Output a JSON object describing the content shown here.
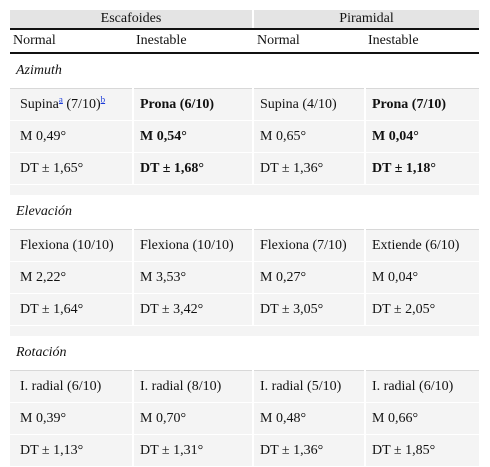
{
  "header": {
    "groups": [
      "Escafoides",
      "Piramidal"
    ],
    "columns": [
      "Normal",
      "Inestable",
      "Normal",
      "Inestable"
    ]
  },
  "sections": [
    {
      "title": "Azimuth",
      "rows": [
        [
          {
            "text": "Supina",
            "sup_a": "a",
            "mid": " (7/10)",
            "sup_b": "b",
            "bold": false
          },
          {
            "text": "Prona (6/10)",
            "bold": true
          },
          {
            "text": "Supina (4/10)",
            "bold": false
          },
          {
            "text": "Prona (7/10)",
            "bold": true
          }
        ],
        [
          {
            "text": "M 0,49°",
            "bold": false
          },
          {
            "text": "M 0,54°",
            "bold": true
          },
          {
            "text": "M 0,65°",
            "bold": false
          },
          {
            "text": "M 0,04°",
            "bold": true
          }
        ],
        [
          {
            "text": "DT ± 1,65°",
            "bold": false
          },
          {
            "text": "DT ± 1,68°",
            "bold": true
          },
          {
            "text": "DT ± 1,36°",
            "bold": false
          },
          {
            "text": "DT ± 1,18°",
            "bold": true
          }
        ]
      ]
    },
    {
      "title": "Elevación",
      "rows": [
        [
          {
            "text": "Flexiona (10/10)",
            "bold": false
          },
          {
            "text": "Flexiona (10/10)",
            "bold": false
          },
          {
            "text": "Flexiona (7/10)",
            "bold": false
          },
          {
            "text": "Extiende (6/10)",
            "bold": false
          }
        ],
        [
          {
            "text": "M 2,22°",
            "bold": false
          },
          {
            "text": "M 3,53°",
            "bold": false
          },
          {
            "text": "M 0,27°",
            "bold": false
          },
          {
            "text": "M 0,04°",
            "bold": false
          }
        ],
        [
          {
            "text": "DT ± 1,64°",
            "bold": false
          },
          {
            "text": "DT ± 3,42°",
            "bold": false
          },
          {
            "text": "DT ± 3,05°",
            "bold": false
          },
          {
            "text": "DT ± 2,05°",
            "bold": false
          }
        ]
      ]
    },
    {
      "title": "Rotación",
      "rows": [
        [
          {
            "text": "I. radial (6/10)",
            "bold": false
          },
          {
            "text": "I. radial (8/10)",
            "bold": false
          },
          {
            "text": "I. radial (5/10)",
            "bold": false
          },
          {
            "text": "I. radial (6/10)",
            "bold": false
          }
        ],
        [
          {
            "text": "M 0,39°",
            "bold": false
          },
          {
            "text": "M 0,70°",
            "bold": false
          },
          {
            "text": "M 0,48°",
            "bold": false
          },
          {
            "text": "M 0,66°",
            "bold": false
          }
        ],
        [
          {
            "text": "DT ± 1,13°",
            "bold": false
          },
          {
            "text": "DT ± 1,31°",
            "bold": false
          },
          {
            "text": "DT ± 1,36°",
            "bold": false
          },
          {
            "text": "DT ± 1,85°",
            "bold": false
          }
        ]
      ]
    }
  ]
}
